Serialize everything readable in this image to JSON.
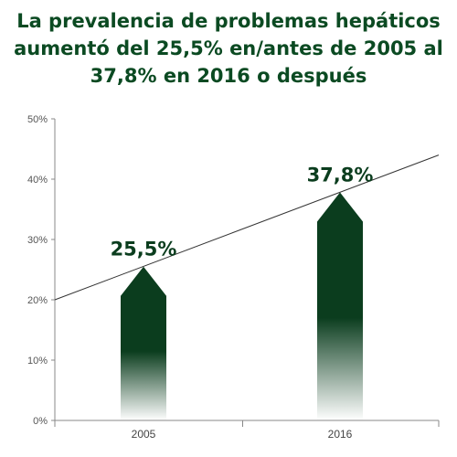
{
  "chart_data": {
    "type": "bar",
    "title": "La prevalencia de problemas hepáticos aumentó del 25,5% en/antes de 2005 al 37,8% en 2016 o después",
    "categories": [
      "2005",
      "2016"
    ],
    "values": [
      25.5,
      37.8
    ],
    "data_labels": [
      "25,5%",
      "37,8%"
    ],
    "ylim": [
      0,
      50
    ],
    "yticks": [
      0,
      10,
      20,
      30,
      40,
      50
    ],
    "ytick_labels": [
      "0%",
      "10%",
      "20%",
      "30%",
      "40%",
      "50%"
    ],
    "xlabel": "",
    "ylabel": "",
    "grid": false,
    "legend": "none",
    "trend_line": {
      "start_value": 20,
      "end_value": 44
    },
    "colors": {
      "bar": "#0b3d1e",
      "title": "#0b4a22",
      "axis": "#888888",
      "trend": "#333333"
    }
  }
}
